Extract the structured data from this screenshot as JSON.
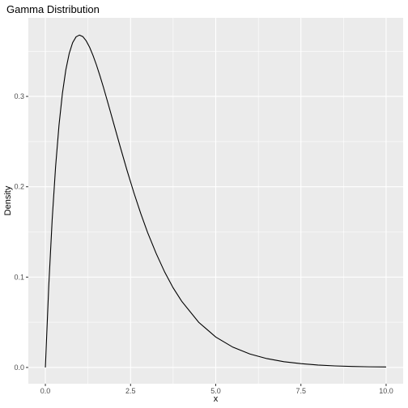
{
  "chart_data": {
    "type": "line",
    "title": "Gamma Distribution",
    "xlabel": "x",
    "ylabel": "Density",
    "xlim": [
      -0.5,
      10.5
    ],
    "ylim": [
      -0.018,
      0.387
    ],
    "x_ticks": [
      0,
      2.5,
      5,
      7.5,
      10
    ],
    "x_tick_labels": [
      "0.0",
      "2.5",
      "5.0",
      "7.5",
      "10.0"
    ],
    "y_ticks": [
      0,
      0.1,
      0.2,
      0.3
    ],
    "y_tick_labels": [
      "0.0",
      "0.1",
      "0.2",
      "0.3"
    ],
    "grid": true,
    "legend": "none",
    "colors": {
      "panel": "#ebebeb",
      "grid": "#ffffff",
      "line": "#000000",
      "tick": "#333333"
    },
    "series": [
      {
        "x": [
          0,
          0.1,
          0.2,
          0.3,
          0.4,
          0.5,
          0.6,
          0.7,
          0.8,
          0.9,
          1.0,
          1.1,
          1.2,
          1.3,
          1.4,
          1.5,
          1.6,
          1.7,
          1.8,
          1.9,
          2.0,
          2.2,
          2.4,
          2.6,
          2.8,
          3.0,
          3.25,
          3.5,
          3.75,
          4.0,
          4.5,
          5.0,
          5.5,
          6.0,
          6.5,
          7.0,
          7.5,
          8.0,
          8.5,
          9.0,
          9.5,
          10.0
        ],
        "y": [
          0,
          0.0905,
          0.1637,
          0.2222,
          0.2681,
          0.3033,
          0.3293,
          0.3476,
          0.3595,
          0.3659,
          0.3679,
          0.3662,
          0.3614,
          0.3543,
          0.3452,
          0.3347,
          0.323,
          0.3106,
          0.2975,
          0.2842,
          0.2707,
          0.2438,
          0.2177,
          0.1931,
          0.1703,
          0.1494,
          0.1263,
          0.1057,
          0.0881,
          0.0733,
          0.05,
          0.0337,
          0.0225,
          0.0149,
          0.0098,
          0.0064,
          0.0042,
          0.0027,
          0.0017,
          0.0011,
          0.0007,
          0.0005
        ]
      }
    ]
  }
}
